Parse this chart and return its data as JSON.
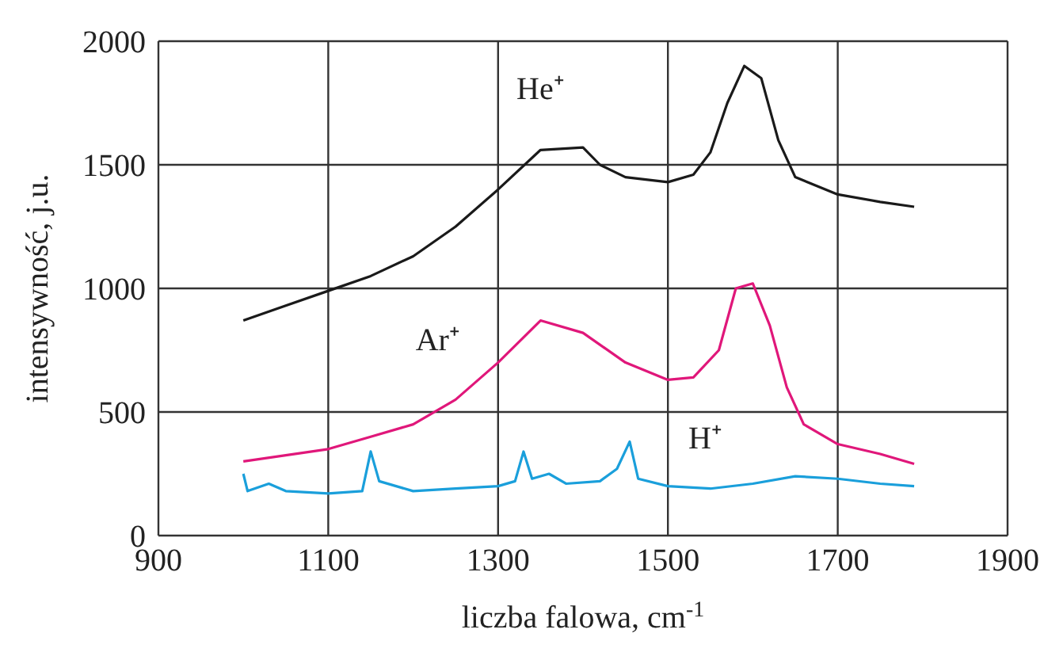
{
  "chart_data": {
    "type": "line",
    "xlabel": "liczba falowa, cm$^{-1}$",
    "ylabel": "intensywność, j.u.",
    "xlim": [
      900,
      1900
    ],
    "xticks": [
      900,
      1100,
      1300,
      1500,
      1700,
      1900
    ],
    "ylim": [
      0,
      2000
    ],
    "yticks": [
      0,
      500,
      1000,
      1500,
      2000
    ],
    "grid": true,
    "legend": false,
    "marker": "none",
    "line_style": "solid",
    "series": [
      {
        "name": "He⁺",
        "color": "#1a1a1a",
        "x": [
          1000,
          1050,
          1100,
          1150,
          1200,
          1250,
          1300,
          1350,
          1400,
          1420,
          1450,
          1500,
          1530,
          1550,
          1570,
          1590,
          1610,
          1630,
          1650,
          1700,
          1750,
          1790
        ],
        "values": [
          870,
          930,
          990,
          1050,
          1130,
          1250,
          1400,
          1560,
          1570,
          1500,
          1450,
          1430,
          1460,
          1550,
          1750,
          1900,
          1850,
          1600,
          1450,
          1380,
          1350,
          1330
        ]
      },
      {
        "name": "Ar⁺",
        "color": "#e0177a",
        "x": [
          1000,
          1100,
          1150,
          1200,
          1250,
          1300,
          1350,
          1400,
          1450,
          1500,
          1530,
          1560,
          1580,
          1600,
          1620,
          1640,
          1660,
          1700,
          1750,
          1790
        ],
        "values": [
          300,
          350,
          400,
          450,
          550,
          700,
          870,
          820,
          700,
          630,
          640,
          750,
          1000,
          1020,
          850,
          600,
          450,
          370,
          330,
          290
        ]
      },
      {
        "name": "H⁺",
        "color": "#1a9fdb",
        "x": [
          1000,
          1005,
          1030,
          1050,
          1100,
          1140,
          1150,
          1160,
          1200,
          1250,
          1300,
          1320,
          1330,
          1340,
          1360,
          1380,
          1420,
          1440,
          1455,
          1465,
          1500,
          1550,
          1600,
          1650,
          1700,
          1750,
          1790
        ],
        "values": [
          250,
          180,
          210,
          180,
          170,
          180,
          340,
          220,
          180,
          190,
          200,
          220,
          340,
          230,
          250,
          210,
          220,
          270,
          380,
          230,
          200,
          190,
          210,
          240,
          230,
          210,
          200
        ]
      }
    ]
  }
}
